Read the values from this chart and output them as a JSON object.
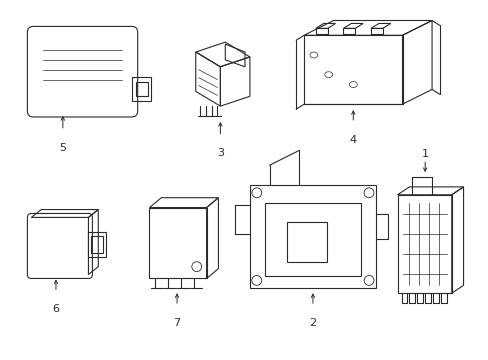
{
  "background_color": "#ffffff",
  "line_color": "#2a2a2a",
  "lw": 0.8,
  "fig_width": 4.89,
  "fig_height": 3.6,
  "dpi": 100
}
